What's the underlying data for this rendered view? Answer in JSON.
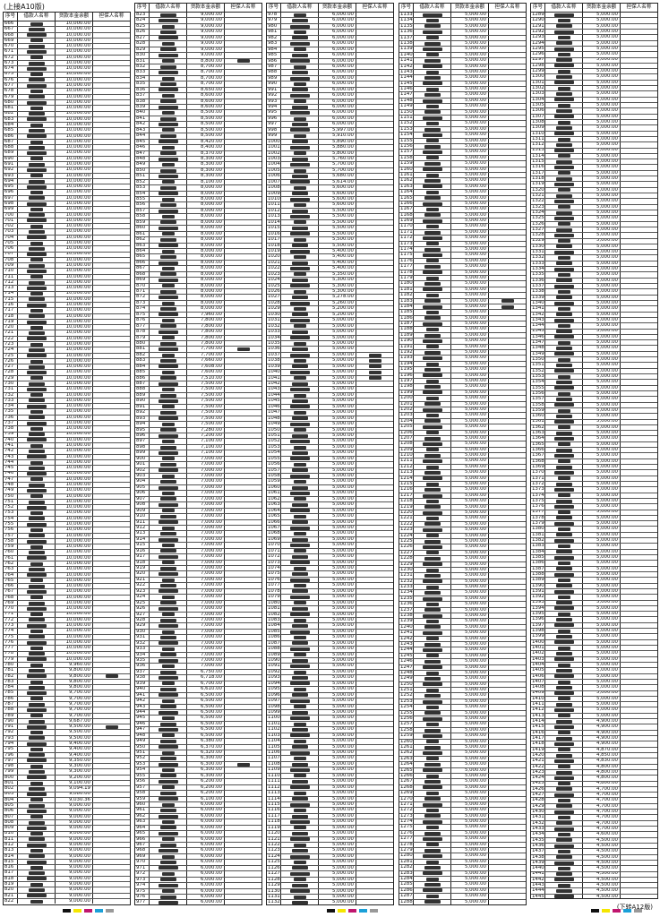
{
  "continued_from": "(上接A10版)",
  "continued_to": "(下转A12版)",
  "headers": [
    "序号",
    "借款人名称",
    "贷款本金余额",
    "担保人名称"
  ],
  "columns": [
    {
      "segments": [
        [
          666,
          779,
          "10,000.00"
        ],
        [
          780,
          780,
          "9,960.00"
        ],
        [
          781,
          784,
          "9,800.00"
        ],
        [
          785,
          789,
          "9,700.00"
        ],
        [
          790,
          790,
          "9,687.00"
        ],
        [
          791,
          793,
          "9,500.00"
        ],
        [
          794,
          796,
          "9,400.00"
        ],
        [
          797,
          797,
          "9,350.00"
        ],
        [
          798,
          799,
          "9,300.00"
        ],
        [
          800,
          800,
          "9,200.00"
        ],
        [
          801,
          801,
          "9,100.00"
        ],
        [
          802,
          802,
          "9,094.19"
        ],
        [
          803,
          803,
          "9,080.00"
        ],
        [
          804,
          804,
          "9,030.36"
        ],
        [
          805,
          822,
          "9,000.00"
        ]
      ],
      "guarantor_rows": [
        782,
        791
      ]
    },
    {
      "segments": [
        [
          823,
          830,
          "9,000.00"
        ],
        [
          831,
          831,
          "8,800.00"
        ],
        [
          832,
          835,
          "8,700.00"
        ],
        [
          836,
          836,
          "8,650.00"
        ],
        [
          837,
          839,
          "8,600.00"
        ],
        [
          840,
          844,
          "8,500.00"
        ],
        [
          845,
          845,
          "8,420.00"
        ],
        [
          846,
          846,
          "8,400.00"
        ],
        [
          847,
          847,
          "8,370.00"
        ],
        [
          848,
          851,
          "8,300.00"
        ],
        [
          852,
          852,
          "8,100.00"
        ],
        [
          853,
          874,
          "8,000.00"
        ],
        [
          875,
          875,
          "7,960.00"
        ],
        [
          876,
          880,
          "7,800.00"
        ],
        [
          881,
          882,
          "7,700.00"
        ],
        [
          883,
          883,
          "7,660.00"
        ],
        [
          884,
          884,
          "7,608.00"
        ],
        [
          885,
          885,
          "7,600.00"
        ],
        [
          886,
          886,
          "7,510.00"
        ],
        [
          887,
          894,
          "7,500.00"
        ],
        [
          895,
          895,
          "7,280.00"
        ],
        [
          896,
          896,
          "7,200.00"
        ],
        [
          897,
          899,
          "7,100.00"
        ],
        [
          900,
          936,
          "7,000.00"
        ],
        [
          937,
          937,
          "6,750.00"
        ],
        [
          938,
          938,
          "6,718.00"
        ],
        [
          939,
          939,
          "6,700.00"
        ],
        [
          940,
          940,
          "6,610.00"
        ],
        [
          941,
          948,
          "6,500.00"
        ],
        [
          949,
          949,
          "6,380.00"
        ],
        [
          950,
          950,
          "6,370.00"
        ],
        [
          951,
          951,
          "6,320.00"
        ],
        [
          952,
          955,
          "6,300.00"
        ],
        [
          956,
          958,
          "6,200.00"
        ],
        [
          959,
          959,
          "6,100.00"
        ],
        [
          960,
          977,
          "6,000.00"
        ]
      ],
      "guarantor_rows": [
        831,
        881,
        953
      ]
    },
    {
      "segments": [
        [
          978,
          997,
          "6,000.00"
        ],
        [
          998,
          998,
          "5,997.00"
        ],
        [
          999,
          999,
          "5,910.00"
        ],
        [
          1000,
          1000,
          "5,890.00"
        ],
        [
          1001,
          1001,
          "5,880.00"
        ],
        [
          1002,
          1002,
          "5,800.00"
        ],
        [
          1003,
          1003,
          "5,760.00"
        ],
        [
          1004,
          1005,
          "5,700.00"
        ],
        [
          1006,
          1006,
          "5,680.00"
        ],
        [
          1007,
          1007,
          "5,614.00"
        ],
        [
          1008,
          1011,
          "5,600.00"
        ],
        [
          1012,
          1018,
          "5,500.00"
        ],
        [
          1019,
          1022,
          "5,400.00"
        ],
        [
          1023,
          1023,
          "5,350.00"
        ],
        [
          1024,
          1026,
          "5,300.00"
        ],
        [
          1027,
          1027,
          "5,278.00"
        ],
        [
          1028,
          1028,
          "5,260.00"
        ],
        [
          1029,
          1030,
          "5,200.00"
        ],
        [
          1031,
          1132,
          "5,000.00"
        ]
      ],
      "guarantor_rows": [
        1037,
        1038,
        1039,
        1040,
        1041
      ]
    },
    {
      "segments": [
        [
          1133,
          1288,
          "5,000.00"
        ]
      ],
      "guarantor_rows": [
        1183,
        1184
      ]
    },
    {
      "segments": [
        [
          1289,
          1413,
          "5,000.00"
        ],
        [
          1414,
          1418,
          "4,900.00"
        ],
        [
          1419,
          1419,
          "4,870.00"
        ],
        [
          1420,
          1420,
          "4,850.00"
        ],
        [
          1421,
          1421,
          "4,830.00"
        ],
        [
          1422,
          1425,
          "4,800.00"
        ],
        [
          1426,
          1433,
          "4,700.00"
        ],
        [
          1434,
          1434,
          "4,600.00"
        ],
        [
          1435,
          1445,
          "4,500.00"
        ]
      ],
      "guarantor_rows": []
    }
  ],
  "registration_colors": [
    "#111111",
    "#f5e600",
    "#c0166e",
    "#1aa0d8",
    "#999999"
  ]
}
